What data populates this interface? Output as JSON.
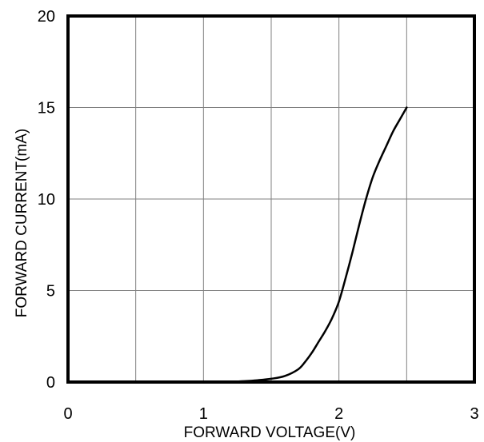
{
  "chart_data": {
    "type": "line",
    "xlabel": "FORWARD VOLTAGE(V)",
    "ylabel": "FORWARD CURRENT(mA)",
    "xlim": [
      0,
      3
    ],
    "ylim": [
      0,
      20
    ],
    "x_ticks": [
      0,
      1,
      2,
      3
    ],
    "y_ticks": [
      0,
      5,
      10,
      15,
      20
    ],
    "x_grid_lines": [
      0.5,
      1,
      1.5,
      2,
      2.5
    ],
    "y_grid_lines": [
      5,
      10,
      15
    ],
    "grid": true,
    "series": [
      {
        "color": "#000000",
        "x": [
          1.1,
          1.2,
          1.3,
          1.4,
          1.5,
          1.6,
          1.7,
          1.75,
          1.8,
          1.85,
          1.9,
          1.95,
          2.0,
          2.05,
          2.1,
          2.15,
          2.2,
          2.25,
          2.3,
          2.35,
          2.4,
          2.45,
          2.5
        ],
        "y": [
          0.0,
          0.02,
          0.05,
          0.1,
          0.18,
          0.33,
          0.7,
          1.1,
          1.6,
          2.2,
          2.8,
          3.5,
          4.4,
          5.7,
          7.1,
          8.6,
          10.0,
          11.2,
          12.1,
          12.9,
          13.7,
          14.35,
          15.0
        ]
      }
    ]
  }
}
